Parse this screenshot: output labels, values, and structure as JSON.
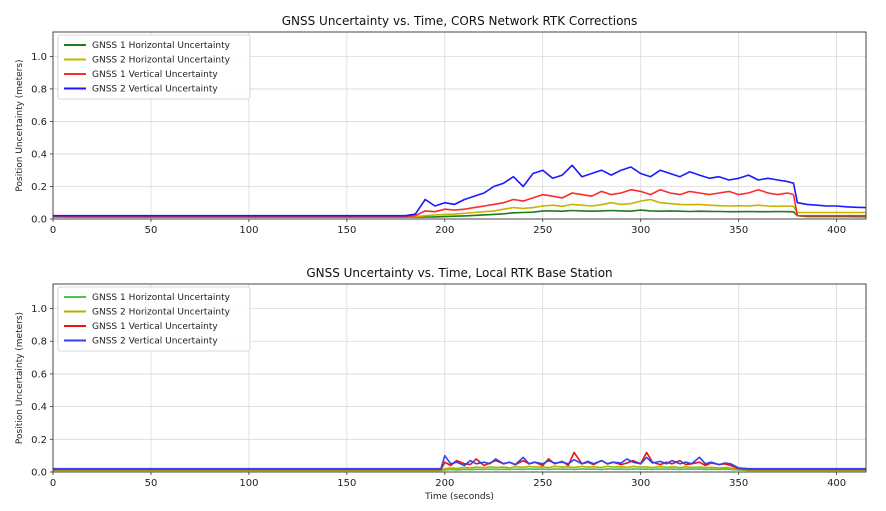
{
  "chart_data": [
    {
      "type": "line",
      "title": "GNSS Uncertainty vs. Time, CORS Network RTK Corrections",
      "xlabel": "",
      "ylabel": "Position Uncertainty (meters)",
      "xlim": [
        0,
        415
      ],
      "ylim": [
        0,
        1.15
      ],
      "xticks": [
        0,
        50,
        100,
        150,
        200,
        250,
        300,
        350,
        400
      ],
      "yticks": [
        0.0,
        0.2,
        0.4,
        0.6,
        0.8,
        1.0
      ],
      "grid": true,
      "legend_position": "top-left",
      "x": [
        0,
        10,
        20,
        30,
        40,
        50,
        60,
        70,
        80,
        90,
        100,
        110,
        120,
        130,
        140,
        150,
        160,
        170,
        180,
        185,
        190,
        195,
        200,
        205,
        210,
        215,
        220,
        225,
        230,
        235,
        240,
        245,
        250,
        255,
        260,
        265,
        270,
        275,
        280,
        285,
        290,
        295,
        300,
        305,
        310,
        315,
        320,
        325,
        330,
        335,
        340,
        345,
        350,
        355,
        360,
        365,
        370,
        375,
        378,
        380,
        385,
        390,
        395,
        400,
        405,
        410,
        415
      ],
      "series": [
        {
          "name": "GNSS 1 Horizontal Uncertainty",
          "color": "#1e7b1e",
          "values": [
            0.012,
            0.011,
            0.011,
            0.011,
            0.011,
            0.011,
            0.011,
            0.011,
            0.011,
            0.011,
            0.011,
            0.011,
            0.011,
            0.011,
            0.011,
            0.011,
            0.011,
            0.011,
            0.011,
            0.011,
            0.012,
            0.013,
            0.015,
            0.017,
            0.019,
            0.022,
            0.025,
            0.028,
            0.032,
            0.038,
            0.04,
            0.042,
            0.05,
            0.05,
            0.048,
            0.052,
            0.05,
            0.048,
            0.05,
            0.052,
            0.05,
            0.048,
            0.055,
            0.05,
            0.048,
            0.05,
            0.048,
            0.046,
            0.048,
            0.047,
            0.046,
            0.045,
            0.045,
            0.046,
            0.045,
            0.045,
            0.046,
            0.045,
            0.044,
            0.02,
            0.015,
            0.015,
            0.015,
            0.015,
            0.015,
            0.014,
            0.014
          ]
        },
        {
          "name": "GNSS 2 Horizontal Uncertainty",
          "color": "#c8b400",
          "values": [
            0.013,
            0.013,
            0.013,
            0.013,
            0.013,
            0.013,
            0.013,
            0.013,
            0.013,
            0.013,
            0.013,
            0.013,
            0.013,
            0.013,
            0.013,
            0.013,
            0.013,
            0.013,
            0.013,
            0.014,
            0.02,
            0.025,
            0.028,
            0.03,
            0.035,
            0.04,
            0.045,
            0.05,
            0.06,
            0.07,
            0.065,
            0.07,
            0.08,
            0.085,
            0.078,
            0.09,
            0.085,
            0.08,
            0.088,
            0.1,
            0.09,
            0.095,
            0.11,
            0.12,
            0.1,
            0.095,
            0.09,
            0.088,
            0.09,
            0.085,
            0.082,
            0.08,
            0.082,
            0.08,
            0.085,
            0.08,
            0.078,
            0.08,
            0.078,
            0.04,
            0.04,
            0.04,
            0.04,
            0.04,
            0.04,
            0.04,
            0.04
          ]
        },
        {
          "name": "GNSS 1 Vertical Uncertainty",
          "color": "#ff2a2a",
          "values": [
            0.016,
            0.015,
            0.015,
            0.015,
            0.015,
            0.015,
            0.015,
            0.015,
            0.015,
            0.015,
            0.015,
            0.015,
            0.015,
            0.015,
            0.015,
            0.015,
            0.015,
            0.015,
            0.015,
            0.02,
            0.05,
            0.045,
            0.06,
            0.055,
            0.06,
            0.07,
            0.08,
            0.09,
            0.1,
            0.12,
            0.11,
            0.13,
            0.15,
            0.14,
            0.13,
            0.16,
            0.15,
            0.14,
            0.17,
            0.15,
            0.16,
            0.18,
            0.17,
            0.15,
            0.18,
            0.16,
            0.15,
            0.17,
            0.16,
            0.15,
            0.16,
            0.17,
            0.15,
            0.16,
            0.18,
            0.16,
            0.15,
            0.16,
            0.15,
            0.02,
            0.02,
            0.02,
            0.02,
            0.02,
            0.02,
            0.02,
            0.02
          ]
        },
        {
          "name": "GNSS 2 Vertical Uncertainty",
          "color": "#1a1aff",
          "values": [
            0.02,
            0.02,
            0.02,
            0.02,
            0.02,
            0.02,
            0.02,
            0.02,
            0.02,
            0.02,
            0.02,
            0.02,
            0.02,
            0.02,
            0.02,
            0.02,
            0.02,
            0.02,
            0.02,
            0.03,
            0.12,
            0.08,
            0.1,
            0.09,
            0.12,
            0.14,
            0.16,
            0.2,
            0.22,
            0.26,
            0.2,
            0.28,
            0.3,
            0.25,
            0.27,
            0.33,
            0.26,
            0.28,
            0.3,
            0.27,
            0.3,
            0.32,
            0.28,
            0.26,
            0.3,
            0.28,
            0.26,
            0.29,
            0.27,
            0.25,
            0.26,
            0.24,
            0.25,
            0.27,
            0.24,
            0.25,
            0.24,
            0.23,
            0.22,
            0.1,
            0.09,
            0.085,
            0.08,
            0.08,
            0.075,
            0.072,
            0.07
          ]
        }
      ]
    },
    {
      "type": "line",
      "title": "GNSS Uncertainty vs. Time, Local RTK Base Station",
      "xlabel": "Time (seconds)",
      "ylabel": "Position Uncertainty (meters)",
      "xlim": [
        0,
        415
      ],
      "ylim": [
        0,
        1.15
      ],
      "xticks": [
        0,
        50,
        100,
        150,
        200,
        250,
        300,
        350,
        400
      ],
      "yticks": [
        0.0,
        0.2,
        0.4,
        0.6,
        0.8,
        1.0
      ],
      "grid": true,
      "legend_position": "top-left",
      "x": [
        0,
        10,
        20,
        30,
        40,
        50,
        60,
        70,
        80,
        90,
        100,
        110,
        120,
        130,
        140,
        150,
        160,
        170,
        180,
        190,
        198,
        200,
        203,
        206,
        210,
        213,
        216,
        220,
        223,
        226,
        230,
        233,
        236,
        240,
        243,
        246,
        250,
        253,
        256,
        260,
        263,
        266,
        270,
        273,
        276,
        280,
        283,
        286,
        290,
        293,
        296,
        300,
        303,
        306,
        310,
        313,
        316,
        320,
        323,
        326,
        330,
        333,
        336,
        340,
        343,
        346,
        350,
        355,
        360,
        370,
        380,
        390,
        400,
        410,
        415
      ],
      "series": [
        {
          "name": "GNSS 1 Horizontal Uncertainty",
          "color": "#4fc24f",
          "values": [
            0.01,
            0.01,
            0.01,
            0.01,
            0.01,
            0.01,
            0.01,
            0.01,
            0.01,
            0.01,
            0.01,
            0.01,
            0.01,
            0.01,
            0.01,
            0.01,
            0.01,
            0.01,
            0.01,
            0.01,
            0.01,
            0.012,
            0.015,
            0.013,
            0.016,
            0.014,
            0.017,
            0.015,
            0.018,
            0.016,
            0.017,
            0.015,
            0.018,
            0.016,
            0.019,
            0.017,
            0.018,
            0.016,
            0.019,
            0.017,
            0.018,
            0.016,
            0.019,
            0.017,
            0.018,
            0.016,
            0.019,
            0.017,
            0.018,
            0.016,
            0.019,
            0.017,
            0.018,
            0.016,
            0.019,
            0.017,
            0.018,
            0.016,
            0.019,
            0.017,
            0.018,
            0.016,
            0.017,
            0.016,
            0.017,
            0.015,
            0.012,
            0.01,
            0.01,
            0.01,
            0.01,
            0.01,
            0.01,
            0.01,
            0.01
          ]
        },
        {
          "name": "GNSS 2 Horizontal Uncertainty",
          "color": "#b5b000",
          "values": [
            0.012,
            0.012,
            0.012,
            0.012,
            0.012,
            0.012,
            0.012,
            0.012,
            0.012,
            0.012,
            0.012,
            0.012,
            0.012,
            0.012,
            0.012,
            0.012,
            0.012,
            0.012,
            0.012,
            0.012,
            0.012,
            0.02,
            0.025,
            0.022,
            0.028,
            0.024,
            0.03,
            0.026,
            0.032,
            0.028,
            0.03,
            0.025,
            0.033,
            0.028,
            0.034,
            0.03,
            0.032,
            0.027,
            0.035,
            0.03,
            0.032,
            0.028,
            0.034,
            0.03,
            0.032,
            0.028,
            0.035,
            0.03,
            0.032,
            0.028,
            0.034,
            0.03,
            0.032,
            0.027,
            0.033,
            0.029,
            0.031,
            0.027,
            0.032,
            0.028,
            0.03,
            0.026,
            0.029,
            0.025,
            0.027,
            0.024,
            0.015,
            0.012,
            0.012,
            0.012,
            0.012,
            0.012,
            0.012,
            0.012,
            0.012
          ]
        },
        {
          "name": "GNSS 1 Vertical Uncertainty",
          "color": "#ee1111",
          "values": [
            0.015,
            0.015,
            0.015,
            0.015,
            0.015,
            0.015,
            0.015,
            0.015,
            0.015,
            0.015,
            0.015,
            0.015,
            0.015,
            0.015,
            0.015,
            0.015,
            0.015,
            0.015,
            0.015,
            0.015,
            0.015,
            0.06,
            0.04,
            0.07,
            0.05,
            0.045,
            0.08,
            0.04,
            0.055,
            0.07,
            0.05,
            0.06,
            0.045,
            0.07,
            0.05,
            0.06,
            0.04,
            0.08,
            0.05,
            0.065,
            0.04,
            0.12,
            0.05,
            0.06,
            0.045,
            0.07,
            0.05,
            0.06,
            0.045,
            0.055,
            0.07,
            0.05,
            0.12,
            0.06,
            0.045,
            0.06,
            0.05,
            0.07,
            0.045,
            0.05,
            0.06,
            0.04,
            0.055,
            0.045,
            0.05,
            0.04,
            0.02,
            0.015,
            0.015,
            0.015,
            0.015,
            0.015,
            0.015,
            0.015,
            0.015
          ]
        },
        {
          "name": "GNSS 2 Vertical Uncertainty",
          "color": "#3344ee",
          "values": [
            0.02,
            0.02,
            0.02,
            0.02,
            0.02,
            0.02,
            0.02,
            0.02,
            0.02,
            0.02,
            0.02,
            0.02,
            0.02,
            0.02,
            0.02,
            0.02,
            0.02,
            0.02,
            0.02,
            0.02,
            0.02,
            0.1,
            0.05,
            0.06,
            0.04,
            0.07,
            0.05,
            0.06,
            0.05,
            0.08,
            0.05,
            0.06,
            0.045,
            0.09,
            0.05,
            0.06,
            0.05,
            0.07,
            0.055,
            0.06,
            0.05,
            0.075,
            0.05,
            0.065,
            0.05,
            0.07,
            0.05,
            0.06,
            0.055,
            0.08,
            0.06,
            0.05,
            0.09,
            0.055,
            0.065,
            0.05,
            0.07,
            0.05,
            0.06,
            0.05,
            0.09,
            0.05,
            0.06,
            0.045,
            0.055,
            0.05,
            0.025,
            0.02,
            0.02,
            0.02,
            0.02,
            0.02,
            0.02,
            0.02,
            0.02
          ]
        }
      ]
    }
  ]
}
